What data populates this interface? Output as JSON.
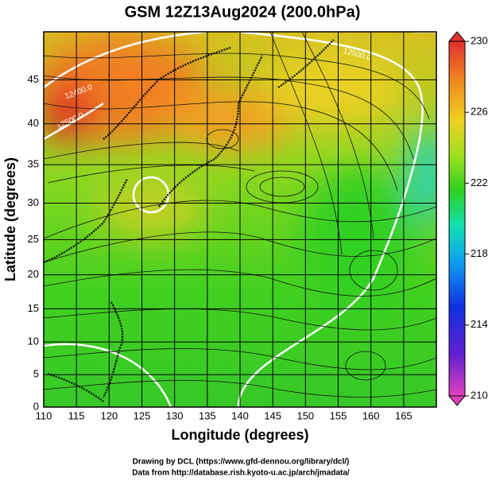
{
  "map": {
    "title": "GSM 12Z13Aug2024 (200.0hPa)",
    "x_label": "Longitude (degrees)",
    "y_label": "Latitude  (degrees)",
    "xlim": [
      110,
      170
    ],
    "xticks": [
      110,
      115,
      120,
      125,
      130,
      135,
      140,
      145,
      150,
      155,
      160,
      165
    ],
    "ylim": [
      0,
      50
    ],
    "yticks": [
      0,
      5,
      10,
      15,
      20,
      25,
      30,
      35,
      40,
      45
    ],
    "colorbar": {
      "lim": [
        210,
        230
      ],
      "ticks": [
        210,
        214,
        218,
        222,
        226,
        230
      ]
    },
    "contour_labels": [
      "12400.0",
      "12500.0",
      "12500.0"
    ],
    "credits": [
      "Drawing by DCL (https://www.gfd-dennou.org/library/dcl/)",
      "Data from http://database.rish.kyoto-u.ac.jp/arch/jmadata/"
    ]
  }
}
